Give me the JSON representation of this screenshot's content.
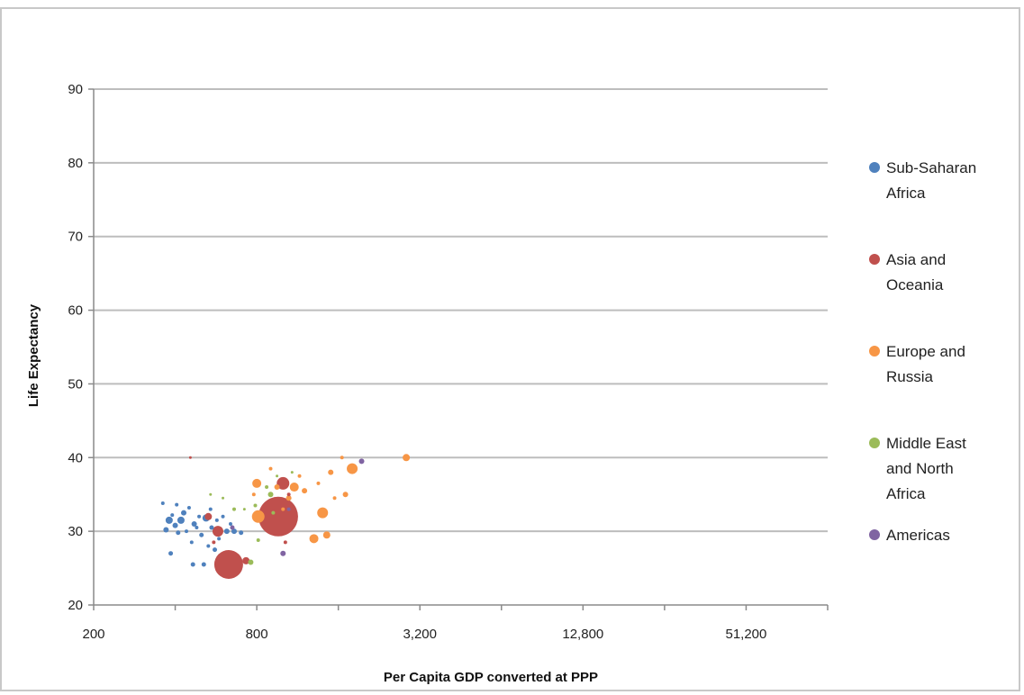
{
  "chart_data": {
    "type": "scatter",
    "title": "",
    "xlabel": "Per Capita GDP converted at PPP",
    "ylabel": "Life Expectancy",
    "x_scale": "log2",
    "xlim": [
      200,
      102400
    ],
    "ylim": [
      20,
      90
    ],
    "x_ticks": [
      200,
      800,
      3200,
      12800,
      51200
    ],
    "x_tick_labels": [
      "200",
      "800",
      "3,200",
      "12,800",
      "51,200"
    ],
    "y_ticks": [
      20,
      30,
      40,
      50,
      60,
      70,
      80,
      90
    ],
    "y_tick_labels": [
      "20",
      "30",
      "40",
      "50",
      "60",
      "70",
      "80",
      "90"
    ],
    "grid": "horizontal",
    "legend_position": "right",
    "series": [
      {
        "name": "Sub-Saharan Africa",
        "color": "#4f81bd",
        "points": [
          [
            360,
            33.8,
            2
          ],
          [
            370,
            30.2,
            3
          ],
          [
            380,
            31.5,
            4
          ],
          [
            385,
            27.0,
            2.5
          ],
          [
            390,
            32.2,
            2
          ],
          [
            400,
            30.8,
            3
          ],
          [
            405,
            33.6,
            2
          ],
          [
            410,
            29.8,
            2.5
          ],
          [
            420,
            31.5,
            4
          ],
          [
            430,
            32.5,
            3
          ],
          [
            440,
            30.0,
            2
          ],
          [
            450,
            33.2,
            2
          ],
          [
            460,
            28.5,
            2
          ],
          [
            465,
            25.5,
            2.5
          ],
          [
            470,
            31.0,
            3
          ],
          [
            480,
            30.5,
            2
          ],
          [
            490,
            32.0,
            2
          ],
          [
            500,
            29.5,
            2.5
          ],
          [
            510,
            25.5,
            2.5
          ],
          [
            520,
            31.8,
            4
          ],
          [
            530,
            28.0,
            2
          ],
          [
            540,
            33.0,
            2
          ],
          [
            545,
            30.5,
            2.5
          ],
          [
            560,
            27.5,
            2.5
          ],
          [
            570,
            31.5,
            2
          ],
          [
            580,
            29.0,
            2
          ],
          [
            600,
            32.0,
            2
          ],
          [
            620,
            30.0,
            3
          ],
          [
            640,
            31.0,
            2
          ],
          [
            660,
            30.0,
            3
          ],
          [
            700,
            29.8,
            2.5
          ]
        ]
      },
      {
        "name": "Asia and Oceania",
        "color": "#c0504d",
        "points": [
          [
            455,
            40.0,
            1.5
          ],
          [
            530,
            32.0,
            4
          ],
          [
            555,
            28.5,
            2
          ],
          [
            575,
            30.0,
            6
          ],
          [
            630,
            25.5,
            16
          ],
          [
            730,
            26.0,
            4
          ],
          [
            960,
            32.0,
            22
          ],
          [
            1000,
            36.5,
            7
          ],
          [
            1020,
            28.5,
            2
          ],
          [
            1050,
            35.0,
            2
          ]
        ]
      },
      {
        "name": "Europe and Russia",
        "color": "#f79646",
        "points": [
          [
            780,
            35.0,
            2
          ],
          [
            800,
            36.5,
            5
          ],
          [
            810,
            32.0,
            7
          ],
          [
            900,
            38.5,
            2
          ],
          [
            950,
            36.0,
            3
          ],
          [
            1000,
            33.0,
            2
          ],
          [
            1050,
            34.5,
            3
          ],
          [
            1100,
            36.0,
            5
          ],
          [
            1150,
            37.5,
            2
          ],
          [
            1200,
            35.5,
            3
          ],
          [
            1300,
            29.0,
            5
          ],
          [
            1350,
            36.5,
            2
          ],
          [
            1400,
            32.5,
            6
          ],
          [
            1450,
            29.5,
            4
          ],
          [
            1500,
            38.0,
            3
          ],
          [
            1550,
            34.5,
            2
          ],
          [
            1650,
            40.0,
            2
          ],
          [
            1700,
            35.0,
            3
          ],
          [
            1800,
            38.5,
            6
          ],
          [
            2850,
            40.0,
            4
          ]
        ]
      },
      {
        "name": "Middle East and North Africa",
        "color": "#9bbb59",
        "points": [
          [
            540,
            35.0,
            1.5
          ],
          [
            600,
            34.5,
            1.5
          ],
          [
            660,
            33.0,
            2
          ],
          [
            720,
            33.0,
            1.5
          ],
          [
            760,
            25.8,
            3
          ],
          [
            790,
            33.5,
            2
          ],
          [
            810,
            28.8,
            2
          ],
          [
            870,
            36.0,
            2
          ],
          [
            900,
            35.0,
            3
          ],
          [
            920,
            32.5,
            2
          ],
          [
            950,
            37.5,
            1.5
          ],
          [
            1080,
            38.0,
            1.5
          ]
        ]
      },
      {
        "name": "Americas",
        "color": "#8064a2",
        "points": [
          [
            650,
            30.5,
            2.5
          ],
          [
            1000,
            27.0,
            3
          ],
          [
            1050,
            33.0,
            2
          ],
          [
            1950,
            39.5,
            3
          ]
        ]
      }
    ]
  }
}
